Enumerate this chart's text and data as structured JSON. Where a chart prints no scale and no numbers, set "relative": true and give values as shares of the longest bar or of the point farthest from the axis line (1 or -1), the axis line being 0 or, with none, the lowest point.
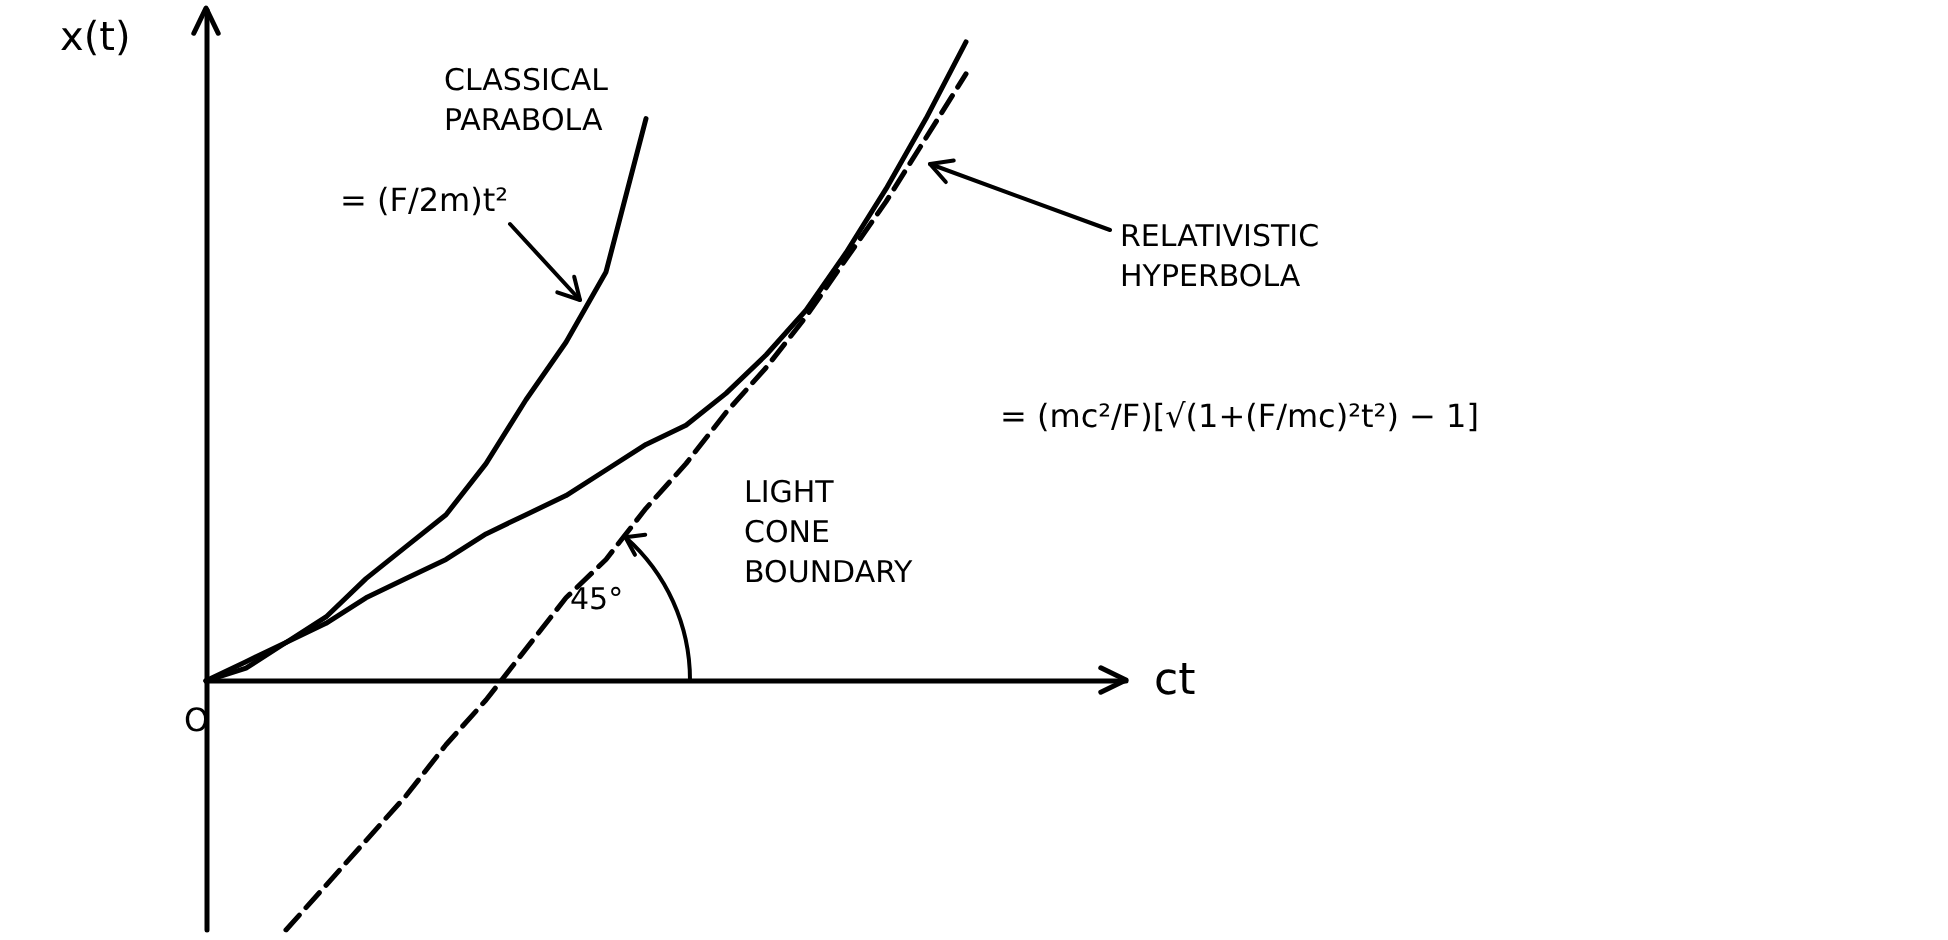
{
  "chart_data": {
    "type": "line",
    "relative": true,
    "xlabel": "ct",
    "ylabel": "x(t)",
    "categories": [
      null,
      null,
      null,
      null,
      null,
      null,
      null,
      null,
      null,
      null,
      null,
      null,
      null,
      null,
      null,
      null,
      null,
      null,
      null,
      null,
      null,
      null,
      null,
      null
    ],
    "series": [
      {
        "name": "CLASSICAL PARABOLA",
        "color": "#000000",
        "values": [
          0,
          0.02,
          0.06,
          0.1,
          0.16,
          0.21,
          0.26,
          0.34,
          0.44,
          0.53,
          0.64,
          0.88,
          null,
          null,
          null,
          null,
          null,
          null,
          null,
          null,
          null,
          null,
          null,
          null
        ]
      },
      {
        "name": "RELATIVISTIC HYPERBOLA",
        "color": "#000000",
        "values": [
          0,
          0.03,
          0.06,
          0.09,
          0.13,
          0.16,
          0.19,
          0.23,
          0.26,
          0.29,
          0.33,
          0.37,
          0.4,
          0.45,
          0.51,
          0.58,
          0.67,
          0.77,
          0.88,
          1,
          null,
          null,
          null,
          null
        ]
      },
      {
        "name": "LIGHT CONE BOUNDARY",
        "color": "#000000",
        "line_style": "dashed",
        "values": [
          null,
          null,
          -0.39,
          -0.32,
          -0.25,
          -0.18,
          -0.1,
          -0.03,
          0.05,
          0.13,
          0.19,
          0.27,
          0.34,
          0.42,
          0.49,
          0.57,
          0.66,
          0.75,
          0.85,
          0.95,
          null,
          null,
          null,
          null
        ]
      }
    ],
    "annotations": [
      "= (F/2m)t²",
      "= (mc²/F)[√(1+(F/mc)²t²) − 1]",
      "45°",
      "O"
    ],
    "marker": "none",
    "grid": false,
    "legend": false
  }
}
